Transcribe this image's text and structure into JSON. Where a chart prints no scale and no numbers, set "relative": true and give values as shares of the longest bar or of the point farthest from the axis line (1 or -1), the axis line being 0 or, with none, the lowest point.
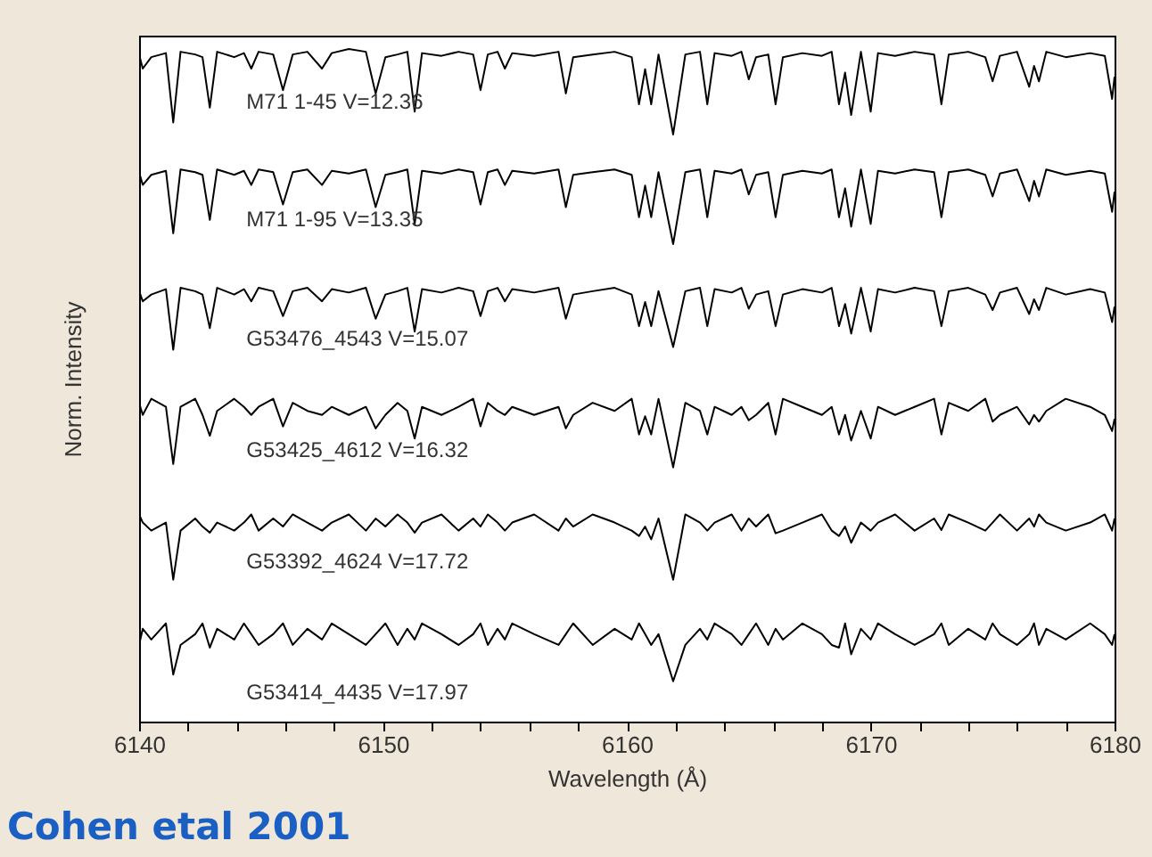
{
  "chart_data": {
    "type": "line",
    "relative": true,
    "xlabel": "Wavelength (Å)",
    "ylabel": "Norm. Intensity",
    "annotations": [
      "Cohen etal 2001"
    ],
    "xlim": [
      6140,
      6180
    ],
    "xticks": [
      6140,
      {
        "value": 6142,
        "label": null
      },
      {
        "value": 6144,
        "label": null
      },
      {
        "value": 6146,
        "label": null
      },
      {
        "value": 6148,
        "label": null
      },
      6150,
      {
        "value": 6152,
        "label": null
      },
      {
        "value": 6154,
        "label": null
      },
      {
        "value": 6156,
        "label": null
      },
      {
        "value": 6158,
        "label": null
      },
      6160,
      {
        "value": 6162,
        "label": null
      },
      {
        "value": 6164,
        "label": null
      },
      {
        "value": 6166,
        "label": null
      },
      {
        "value": 6168,
        "label": null
      },
      6170,
      {
        "value": 6172,
        "label": null
      },
      {
        "value": 6174,
        "label": null
      },
      {
        "value": 6176,
        "label": null
      },
      {
        "value": 6178,
        "label": null
      },
      6180
    ],
    "x": [
      6140.0,
      6140.15,
      6140.5,
      6141.1,
      6141.4,
      6141.7,
      6142.3,
      6142.6,
      6142.9,
      6143.2,
      6143.9,
      6144.3,
      6144.6,
      6144.9,
      6145.5,
      6145.9,
      6146.3,
      6146.9,
      6147.5,
      6147.9,
      6148.6,
      6149.3,
      6149.7,
      6150.1,
      6150.6,
      6151.0,
      6151.3,
      6151.6,
      6152.4,
      6153.1,
      6153.7,
      6154.0,
      6154.3,
      6154.7,
      6155.0,
      6155.3,
      6156.2,
      6157.2,
      6157.5,
      6157.8,
      6158.6,
      6159.5,
      6160.2,
      6160.5,
      6160.75,
      6161.0,
      6161.3,
      6161.9,
      6162.4,
      6163.0,
      6163.3,
      6163.6,
      6164.3,
      6164.7,
      6165.0,
      6165.3,
      6165.8,
      6166.1,
      6166.4,
      6167.2,
      6168.0,
      6168.4,
      6168.7,
      6168.95,
      6169.2,
      6169.6,
      6170.0,
      6170.3,
      6171.0,
      6171.8,
      6172.6,
      6172.9,
      6173.2,
      6174.0,
      6174.7,
      6175.0,
      6175.3,
      6176.0,
      6176.5,
      6176.7,
      6176.9,
      6177.2,
      6178.0,
      6179.0,
      6179.6,
      6179.9,
      6180.0
    ],
    "series": [
      {
        "name": "M71 1-45  V=12.36",
        "color": "#000000",
        "values": [
          0.992,
          0.971,
          0.988,
          0.994,
          0.891,
          0.996,
          0.992,
          0.988,
          0.913,
          0.996,
          0.988,
          0.994,
          0.971,
          0.996,
          0.992,
          0.939,
          0.992,
          0.996,
          0.971,
          0.994,
          1.0,
          0.996,
          0.934,
          0.988,
          0.992,
          0.996,
          0.907,
          0.994,
          0.99,
          0.996,
          0.992,
          0.939,
          0.992,
          0.996,
          0.971,
          0.994,
          0.99,
          0.996,
          0.934,
          0.988,
          0.992,
          0.996,
          0.988,
          0.918,
          0.97,
          0.918,
          0.992,
          0.873,
          0.992,
          0.996,
          0.918,
          0.994,
          0.99,
          0.996,
          0.955,
          0.988,
          0.992,
          0.918,
          0.988,
          0.994,
          0.99,
          0.996,
          0.918,
          0.965,
          0.902,
          0.996,
          0.907,
          0.994,
          0.99,
          0.996,
          0.992,
          0.918,
          0.992,
          0.996,
          0.988,
          0.952,
          0.99,
          0.996,
          0.944,
          0.975,
          0.952,
          0.996,
          0.988,
          0.994,
          0.99,
          0.926,
          0.959
        ]
      },
      {
        "name": "M71 1-95  V=13.35",
        "color": "#000000",
        "values": [
          0.817,
          0.798,
          0.813,
          0.819,
          0.726,
          0.821,
          0.817,
          0.813,
          0.746,
          0.821,
          0.813,
          0.819,
          0.798,
          0.821,
          0.817,
          0.769,
          0.817,
          0.821,
          0.798,
          0.819,
          0.815,
          0.821,
          0.765,
          0.813,
          0.817,
          0.821,
          0.74,
          0.819,
          0.815,
          0.821,
          0.817,
          0.769,
          0.817,
          0.821,
          0.798,
          0.819,
          0.815,
          0.821,
          0.765,
          0.813,
          0.817,
          0.821,
          0.813,
          0.75,
          0.797,
          0.75,
          0.817,
          0.71,
          0.817,
          0.821,
          0.75,
          0.819,
          0.815,
          0.821,
          0.784,
          0.813,
          0.817,
          0.75,
          0.813,
          0.819,
          0.815,
          0.821,
          0.75,
          0.793,
          0.736,
          0.821,
          0.74,
          0.819,
          0.815,
          0.821,
          0.817,
          0.75,
          0.817,
          0.821,
          0.813,
          0.781,
          0.815,
          0.821,
          0.774,
          0.804,
          0.781,
          0.821,
          0.813,
          0.819,
          0.815,
          0.758,
          0.788
        ]
      },
      {
        "name": "G53476_4543   V=15.07",
        "color": "#000000",
        "values": [
          0.64,
          0.625,
          0.635,
          0.643,
          0.553,
          0.645,
          0.64,
          0.635,
          0.585,
          0.645,
          0.635,
          0.643,
          0.625,
          0.645,
          0.64,
          0.603,
          0.64,
          0.645,
          0.625,
          0.643,
          0.638,
          0.645,
          0.599,
          0.635,
          0.64,
          0.645,
          0.58,
          0.643,
          0.638,
          0.645,
          0.64,
          0.603,
          0.64,
          0.645,
          0.625,
          0.643,
          0.638,
          0.645,
          0.599,
          0.635,
          0.64,
          0.645,
          0.635,
          0.588,
          0.624,
          0.588,
          0.64,
          0.557,
          0.64,
          0.645,
          0.588,
          0.643,
          0.638,
          0.645,
          0.614,
          0.635,
          0.64,
          0.588,
          0.635,
          0.643,
          0.638,
          0.645,
          0.588,
          0.621,
          0.577,
          0.645,
          0.58,
          0.643,
          0.638,
          0.645,
          0.64,
          0.588,
          0.64,
          0.645,
          0.635,
          0.612,
          0.638,
          0.645,
          0.606,
          0.628,
          0.612,
          0.645,
          0.635,
          0.643,
          0.638,
          0.594,
          0.617
        ]
      },
      {
        "name": "G53425_4612   V=16.32",
        "color": "#000000",
        "values": [
          0.474,
          0.456,
          0.48,
          0.468,
          0.383,
          0.468,
          0.48,
          0.456,
          0.425,
          0.462,
          0.48,
          0.468,
          0.456,
          0.468,
          0.48,
          0.439,
          0.474,
          0.462,
          0.456,
          0.468,
          0.456,
          0.468,
          0.436,
          0.456,
          0.474,
          0.462,
          0.421,
          0.468,
          0.456,
          0.468,
          0.48,
          0.439,
          0.474,
          0.462,
          0.456,
          0.468,
          0.456,
          0.468,
          0.436,
          0.456,
          0.474,
          0.462,
          0.48,
          0.427,
          0.454,
          0.427,
          0.48,
          0.378,
          0.474,
          0.462,
          0.427,
          0.468,
          0.456,
          0.468,
          0.448,
          0.456,
          0.474,
          0.427,
          0.48,
          0.468,
          0.456,
          0.468,
          0.427,
          0.456,
          0.418,
          0.462,
          0.421,
          0.468,
          0.456,
          0.468,
          0.48,
          0.427,
          0.474,
          0.462,
          0.48,
          0.446,
          0.456,
          0.468,
          0.442,
          0.456,
          0.446,
          0.462,
          0.48,
          0.468,
          0.456,
          0.432,
          0.45
        ]
      },
      {
        "name": "G53392_4624   V=17.72",
        "color": "#000000",
        "values": [
          0.308,
          0.296,
          0.284,
          0.296,
          0.211,
          0.284,
          0.302,
          0.29,
          0.281,
          0.296,
          0.284,
          0.296,
          0.308,
          0.284,
          0.302,
          0.29,
          0.308,
          0.296,
          0.284,
          0.296,
          0.308,
          0.284,
          0.302,
          0.29,
          0.308,
          0.296,
          0.281,
          0.296,
          0.308,
          0.284,
          0.302,
          0.29,
          0.308,
          0.296,
          0.284,
          0.296,
          0.308,
          0.284,
          0.302,
          0.29,
          0.308,
          0.296,
          0.284,
          0.276,
          0.29,
          0.271,
          0.302,
          0.211,
          0.308,
          0.296,
          0.284,
          0.296,
          0.308,
          0.284,
          0.302,
          0.29,
          0.308,
          0.28,
          0.284,
          0.296,
          0.308,
          0.284,
          0.276,
          0.29,
          0.266,
          0.296,
          0.284,
          0.296,
          0.308,
          0.284,
          0.302,
          0.285,
          0.308,
          0.296,
          0.284,
          0.296,
          0.308,
          0.284,
          0.302,
          0.29,
          0.308,
          0.296,
          0.284,
          0.296,
          0.308,
          0.284,
          0.302
        ]
      },
      {
        "name": "G53414_4435   V=17.97",
        "color": "#000000",
        "values": [
          0.114,
          0.138,
          0.122,
          0.146,
          0.07,
          0.114,
          0.13,
          0.146,
          0.11,
          0.138,
          0.122,
          0.146,
          0.13,
          0.114,
          0.13,
          0.146,
          0.114,
          0.138,
          0.122,
          0.146,
          0.13,
          0.114,
          0.13,
          0.146,
          0.114,
          0.138,
          0.122,
          0.146,
          0.13,
          0.114,
          0.13,
          0.146,
          0.114,
          0.138,
          0.122,
          0.146,
          0.13,
          0.114,
          0.13,
          0.146,
          0.114,
          0.138,
          0.122,
          0.146,
          0.13,
          0.114,
          0.13,
          0.06,
          0.114,
          0.138,
          0.122,
          0.146,
          0.13,
          0.114,
          0.13,
          0.146,
          0.114,
          0.138,
          0.122,
          0.146,
          0.13,
          0.114,
          0.11,
          0.146,
          0.1,
          0.138,
          0.122,
          0.146,
          0.13,
          0.114,
          0.13,
          0.146,
          0.114,
          0.138,
          0.122,
          0.146,
          0.13,
          0.114,
          0.13,
          0.146,
          0.114,
          0.138,
          0.122,
          0.146,
          0.13,
          0.114,
          0.13
        ]
      }
    ]
  }
}
